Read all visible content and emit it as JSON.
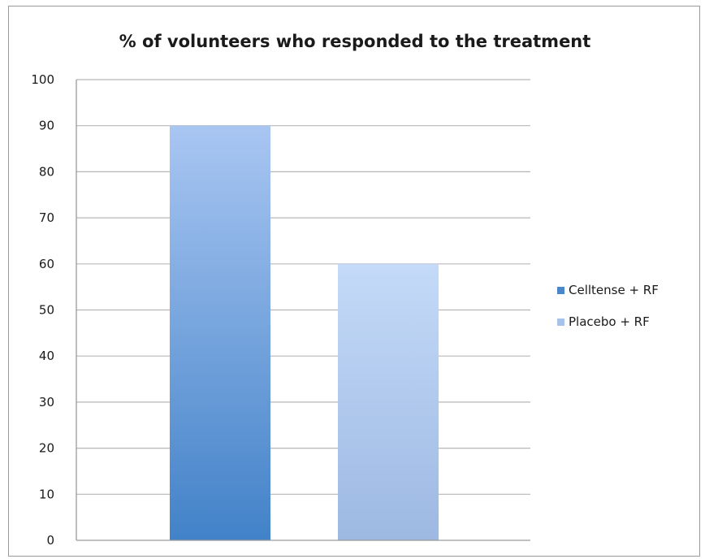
{
  "chart_data": {
    "type": "bar",
    "title": "% of volunteers who responded to the treatment",
    "xlabel": "",
    "ylabel": "",
    "ylim": [
      0,
      100
    ],
    "yticks": [
      0,
      10,
      20,
      30,
      40,
      50,
      60,
      70,
      80,
      90,
      100
    ],
    "grid": true,
    "legend_position": "right",
    "series": [
      {
        "name": "Celltense + RF",
        "value": 90,
        "color_top": "#a9c6f2",
        "color_bottom": "#4282c8"
      },
      {
        "name": "Placebo + RF",
        "value": 60,
        "color_top": "#c4daf8",
        "color_bottom": "#9db8e2"
      }
    ],
    "legend_colors": [
      "#4a86c9",
      "#a8c3ea"
    ]
  }
}
